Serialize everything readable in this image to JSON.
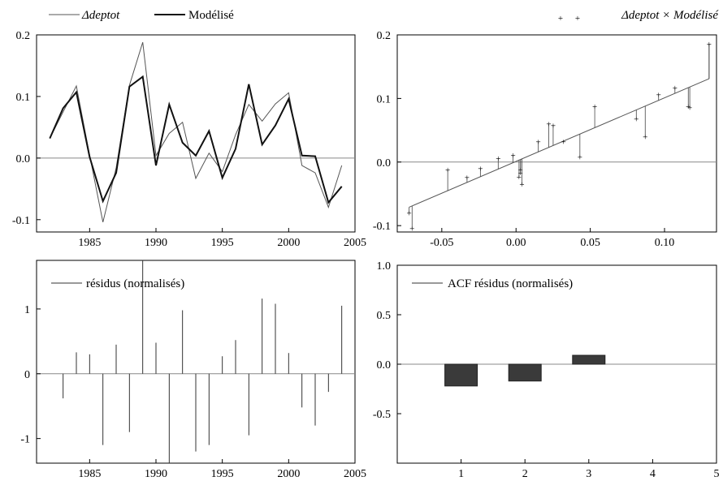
{
  "chart_data": [
    {
      "type": "line",
      "legend": [
        "Δdeptot",
        "Modélisé"
      ],
      "legend_placement": "top",
      "xlim": [
        1981,
        2005
      ],
      "ylim": [
        -0.12,
        0.2
      ],
      "xticks": [
        1985,
        1990,
        1995,
        2000,
        2005
      ],
      "yticks": [
        -0.1,
        0.0,
        0.1,
        0.2
      ],
      "ytick_labels": [
        "-0.1",
        "0.0",
        "0.1",
        "0.2"
      ],
      "x": [
        1982,
        1983,
        1984,
        1985,
        1986,
        1987,
        1988,
        1989,
        1990,
        1991,
        1992,
        1993,
        1994,
        1995,
        1996,
        1997,
        1998,
        1999,
        2000,
        2001,
        2002,
        2003,
        2004
      ],
      "series": [
        {
          "name": "Δdeptot",
          "values": [
            0.032,
            0.075,
            0.117,
            0.005,
            -0.104,
            -0.016,
            0.118,
            0.188,
            0.004,
            0.04,
            0.058,
            -0.033,
            0.008,
            -0.022,
            0.038,
            0.087,
            0.06,
            0.088,
            0.106,
            -0.012,
            -0.024,
            -0.08,
            -0.012
          ]
        },
        {
          "name": "Modélisé",
          "values": [
            0.032,
            0.081,
            0.107,
            0.002,
            -0.07,
            -0.024,
            0.116,
            0.132,
            -0.012,
            0.087,
            0.025,
            0.004,
            0.044,
            -0.032,
            0.015,
            0.12,
            0.022,
            0.053,
            0.096,
            0.004,
            0.003,
            -0.072,
            -0.046
          ]
        }
      ]
    },
    {
      "type": "scatter",
      "legend": [
        "Δdeptot × Modélisé"
      ],
      "legend_placement": "top-right",
      "xlim": [
        -0.08,
        0.135
      ],
      "ylim": [
        -0.11,
        0.2
      ],
      "xticks": [
        -0.05,
        0.0,
        0.05,
        0.1
      ],
      "xtick_labels": [
        "-0.05",
        "0.00",
        "0.05",
        "0.10"
      ],
      "yticks": [
        -0.1,
        0.0,
        0.1,
        0.2
      ],
      "ytick_labels": [
        "-0.1",
        "0.0",
        "0.1",
        "0.2"
      ],
      "fit_line": [
        [
          -0.072,
          -0.071
        ],
        [
          0.13,
          0.131
        ]
      ],
      "points": [
        [
          -0.072,
          -0.08
        ],
        [
          -0.07,
          -0.104
        ],
        [
          -0.046,
          -0.012
        ],
        [
          -0.033,
          -0.024
        ],
        [
          -0.024,
          -0.01
        ],
        [
          -0.012,
          0.006
        ],
        [
          -0.002,
          0.011
        ],
        [
          0.002,
          -0.023
        ],
        [
          0.003,
          -0.017
        ],
        [
          0.003,
          -0.012
        ],
        [
          0.004,
          -0.035
        ],
        [
          0.015,
          0.032
        ],
        [
          0.022,
          0.06
        ],
        [
          0.025,
          0.058
        ],
        [
          0.032,
          0.032
        ],
        [
          0.043,
          0.008
        ],
        [
          0.053,
          0.088
        ],
        [
          0.081,
          0.068
        ],
        [
          0.087,
          0.04
        ],
        [
          0.096,
          0.106
        ],
        [
          0.107,
          0.117
        ],
        [
          0.116,
          0.088
        ],
        [
          0.117,
          0.086
        ],
        [
          0.13,
          0.186
        ]
      ]
    },
    {
      "type": "bar",
      "legend": [
        "résidus (normalisés)"
      ],
      "legend_placement": "top-left",
      "xlim": [
        1981,
        2005
      ],
      "ylim": [
        -1.38,
        1.75
      ],
      "xticks": [
        1985,
        1990,
        1995,
        2000,
        2005
      ],
      "yticks": [
        -1,
        0,
        1
      ],
      "ytick_labels": [
        "-1",
        "0",
        "1"
      ],
      "x": [
        1983,
        1984,
        1985,
        1986,
        1987,
        1988,
        1989,
        1990,
        1991,
        1992,
        1993,
        1994,
        1995,
        1996,
        1997,
        1998,
        1999,
        2000,
        2001,
        2002,
        2003,
        2004
      ],
      "values": [
        -0.38,
        0.33,
        0.3,
        -1.1,
        0.45,
        -0.9,
        1.75,
        0.48,
        -1.38,
        0.98,
        -1.2,
        -1.1,
        0.27,
        0.52,
        -0.95,
        1.16,
        1.08,
        0.32,
        -0.52,
        -0.8,
        -0.28,
        1.05
      ]
    },
    {
      "type": "bar",
      "legend": [
        "ACF résidus (normalisés)"
      ],
      "legend_placement": "top-left",
      "xlim": [
        0,
        5
      ],
      "ylim": [
        -1.0,
        1.0
      ],
      "xticks": [
        1,
        2,
        3,
        4,
        5
      ],
      "yticks": [
        -0.5,
        0.0,
        0.5,
        1.0
      ],
      "ytick_labels": [
        "-0.5",
        "0.0",
        "0.5",
        "1.0"
      ],
      "categories": [
        1,
        2,
        3
      ],
      "values": [
        -0.22,
        -0.17,
        0.09
      ]
    }
  ]
}
